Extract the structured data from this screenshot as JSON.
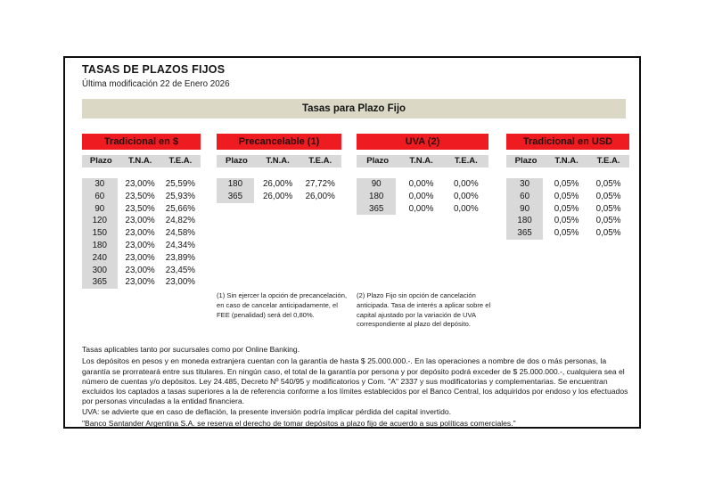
{
  "document": {
    "title": "TASAS DE PLAZOS FIJOS",
    "subtitle": "Última modificación 22 de Enero 2026",
    "banner": "Tasas para Plazo Fijo"
  },
  "colors": {
    "accent_red": "#ee1b20",
    "banner_beige": "#dbd8c6",
    "cell_gray": "#d9d9d9"
  },
  "columns": [
    "Plazo",
    "T.N.A.",
    "T.E.A."
  ],
  "tables": [
    {
      "header": "Tradicional en $",
      "rows": [
        [
          "30",
          "23,00%",
          "25,59%"
        ],
        [
          "60",
          "23,50%",
          "25,93%"
        ],
        [
          "90",
          "23,50%",
          "25,66%"
        ],
        [
          "120",
          "23,00%",
          "24,82%"
        ],
        [
          "150",
          "23,00%",
          "24,58%"
        ],
        [
          "180",
          "23,00%",
          "24,34%"
        ],
        [
          "240",
          "23,00%",
          "23,89%"
        ],
        [
          "300",
          "23,00%",
          "23,45%"
        ],
        [
          "365",
          "23,00%",
          "23,00%"
        ]
      ]
    },
    {
      "header": "Precancelable (1)",
      "rows": [
        [
          "180",
          "26,00%",
          "27,72%"
        ],
        [
          "365",
          "26,00%",
          "26,00%"
        ]
      ],
      "footnote": "(1) Sin ejercer la opción de precancelación, en caso de cancelar anticipadamente, el FEE (penalidad) será del 0,80%."
    },
    {
      "header": "UVA (2)",
      "rows": [
        [
          "90",
          "0,00%",
          "0,00%"
        ],
        [
          "180",
          "0,00%",
          "0,00%"
        ],
        [
          "365",
          "0,00%",
          "0,00%"
        ]
      ],
      "footnote": "(2) Plazo Fijo sin opción de cancelación anticipada.  Tasa de interés a aplicar sobre el capital ajustado por la variación de UVA correspondiente al plazo del depósito."
    },
    {
      "header": "Tradicional en USD",
      "rows": [
        [
          "30",
          "0,05%",
          "0,05%"
        ],
        [
          "60",
          "0,05%",
          "0,05%"
        ],
        [
          "90",
          "0,05%",
          "0,05%"
        ],
        [
          "180",
          "0,05%",
          "0,05%"
        ],
        [
          "365",
          "0,05%",
          "0,05%"
        ]
      ]
    }
  ],
  "legal": {
    "line1": "Tasas aplicables tanto por sucursales como por Online Banking.",
    "paragraph": "Los depósitos en pesos y en moneda extranjera cuentan con la garantía de hasta $ 25.000.000.-. En las operaciones a nombre de dos o más personas, la garantía se prorrateará entre sus titulares. En ningún caso, el total de la garantía por persona y por depósito podrá exceder de $ 25.000.000.-, cualquiera sea el número de cuentas y/o depósitos. Ley 24.485, Decreto Nº 540/95 y modificatorios y Com. \"A\" 2337 y sus modificatorias y complementarias. Se encuentran excluidos los captados a tasas superiores a la de referencia conforme a los límites establecidos por el Banco Central, los adquiridos por endoso y los efectuados por personas vinculadas a la entidad financiera.",
    "uva_line": "UVA:  se advierte que en caso de deflación, la presente inversión podría implicar pérdida del capital invertido.",
    "reserve_line": "\"Banco Santander Argentina S.A. se reserva el derecho de tomar depósitos a plazo fijo de acuerdo a sus políticas comerciales.\""
  }
}
